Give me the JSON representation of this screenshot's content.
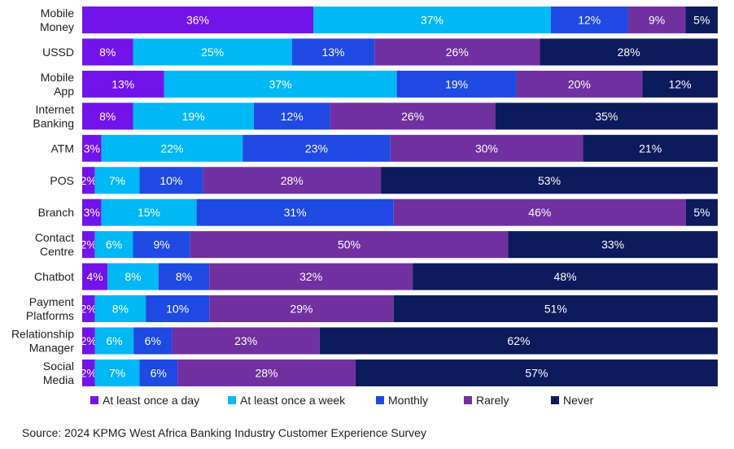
{
  "chart_data": {
    "type": "bar",
    "orientation": "horizontal",
    "stacked": true,
    "percent": true,
    "categories": [
      "Mobile\nMoney",
      "USSD",
      "Mobile\nApp",
      "Internet\nBanking",
      "ATM",
      "POS",
      "Branch",
      "Contact\nCentre",
      "Chatbot",
      "Payment\nPlatforms",
      "Relationship\nManager",
      "Social\nMedia"
    ],
    "series": [
      {
        "name": "At least once a day",
        "color": "#7213ea",
        "values": [
          36,
          8,
          13,
          8,
          3,
          2,
          3,
          2,
          4,
          2,
          2,
          2
        ]
      },
      {
        "name": "At least once a week",
        "color": "#00b8f5",
        "values": [
          37,
          25,
          37,
          19,
          22,
          7,
          15,
          6,
          8,
          8,
          6,
          7
        ]
      },
      {
        "name": "Monthly",
        "color": "#1e49e2",
        "values": [
          12,
          13,
          19,
          12,
          23,
          10,
          31,
          9,
          8,
          10,
          6,
          6
        ]
      },
      {
        "name": "Rarely",
        "color": "#7030a0",
        "values": [
          9,
          26,
          20,
          26,
          30,
          28,
          46,
          50,
          32,
          29,
          23,
          28
        ]
      },
      {
        "name": "Never",
        "color": "#0c1b5c",
        "values": [
          5,
          28,
          12,
          35,
          21,
          53,
          5,
          33,
          48,
          51,
          62,
          57
        ]
      }
    ],
    "value_suffix": "%",
    "legend_position": "bottom",
    "grid": false
  },
  "source": "Source: 2024 KPMG West Africa Banking Industry Customer Experience Survey"
}
